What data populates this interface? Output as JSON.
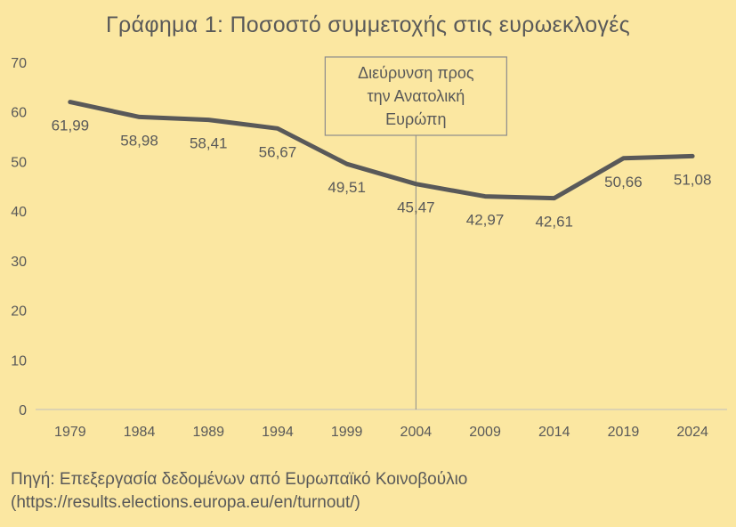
{
  "title": "Γράφημα 1: Ποσοστό συμμετοχής στις ευρωεκλογές",
  "annotation": {
    "lines": [
      "Διεύρυνση προς",
      "την Ανατολική",
      "Ευρώπη"
    ],
    "at": "2004"
  },
  "source": {
    "line1": "Πηγή: Επεξεργασία δεδομένων από Ευρωπαϊκό Κοινοβούλιο",
    "line2": "(https://results.elections.europa.eu/en/turnout/)"
  },
  "colors": {
    "background": "#fbe7a1",
    "line": "#595959",
    "text": "#595959",
    "marker_line": "#8c8c8c"
  },
  "chart_data": {
    "type": "line",
    "categories": [
      "1979",
      "1984",
      "1989",
      "1994",
      "1999",
      "2004",
      "2009",
      "2014",
      "2019",
      "2024"
    ],
    "values": [
      61.99,
      58.98,
      58.41,
      56.67,
      49.51,
      45.47,
      42.97,
      42.61,
      50.66,
      51.08
    ],
    "data_labels": [
      "61,99",
      "58,98",
      "58,41",
      "56,67",
      "49,51",
      "45,47",
      "42,97",
      "42,61",
      "50,66",
      "51,08"
    ],
    "yticks": [
      "0",
      "10",
      "20",
      "30",
      "40",
      "50",
      "60",
      "70"
    ],
    "ylim": [
      0,
      70
    ],
    "grid": false,
    "legend": "none"
  }
}
